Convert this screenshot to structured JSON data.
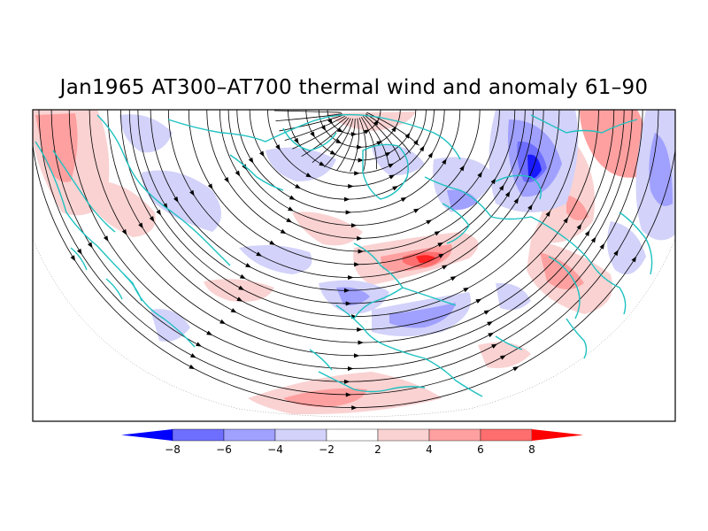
{
  "figure": {
    "title": "Jan1965 AT300–AT700 thermal wind and anomaly 61–90"
  },
  "colors": {
    "coast": "#1fc1c1",
    "stream": "#000000",
    "frame": "#000000"
  },
  "colorbar": {
    "levels": [
      "−8",
      "−6",
      "−4",
      "−2",
      "2",
      "4",
      "6",
      "8"
    ],
    "colors": [
      "#0000ff",
      "#6e6eff",
      "#a0a0ff",
      "#d2d2fa",
      "#ffffff",
      "#fad2d2",
      "#ffa0a0",
      "#ff6e6e",
      "#ff0000"
    ]
  },
  "anomaly_patches": [
    {
      "sign": "pos",
      "level": 6
    },
    {
      "sign": "neg",
      "level": -6
    },
    {
      "sign": "pos",
      "level": 8
    },
    {
      "sign": "neg",
      "level": -8
    },
    {
      "sign": "pos",
      "level": 6
    },
    {
      "sign": "neg",
      "level": -4
    },
    {
      "sign": "pos",
      "level": 4
    }
  ]
}
